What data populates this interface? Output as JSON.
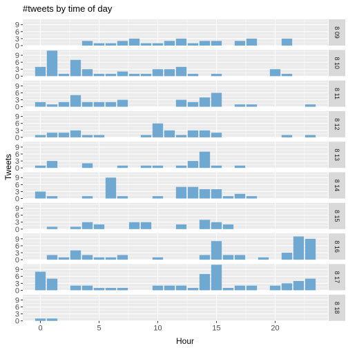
{
  "chart_data": {
    "type": "bar",
    "title": "#tweets by time of day",
    "xlabel": "Hour",
    "ylabel": "Tweets",
    "x_ticks": [
      0,
      5,
      10,
      15,
      20
    ],
    "y_ticks": [
      0,
      3,
      6,
      9
    ],
    "xlim": [
      -1.5,
      24.5
    ],
    "ylim": [
      0,
      11.3
    ],
    "grid": true,
    "bar_color": "#6fa8d0",
    "panel_background": "#ebebeb",
    "strip_background": "#d9d9d9",
    "hours": [
      0,
      1,
      2,
      3,
      4,
      5,
      6,
      7,
      8,
      9,
      10,
      11,
      12,
      13,
      14,
      15,
      16,
      17,
      18,
      19,
      20,
      21,
      22,
      23
    ],
    "facets": [
      {
        "label": "8 09",
        "values": [
          0,
          0,
          0,
          0,
          2,
          1,
          1,
          2,
          3,
          1,
          1,
          2,
          3,
          1,
          2,
          2,
          0,
          2,
          3,
          0,
          0,
          3,
          0,
          0
        ]
      },
      {
        "label": "8 10",
        "values": [
          4,
          11,
          1,
          7,
          3,
          1,
          1,
          2,
          1,
          1,
          3,
          3,
          4,
          1,
          0,
          1,
          0,
          0,
          0,
          0,
          3,
          1,
          0,
          0
        ]
      },
      {
        "label": "8 11",
        "values": [
          2,
          1,
          2,
          5,
          2,
          2,
          2,
          3,
          0,
          0,
          0,
          0,
          3,
          2,
          4,
          6,
          0,
          1,
          1,
          0,
          0,
          0,
          0,
          1
        ]
      },
      {
        "label": "8 12",
        "values": [
          1,
          2,
          2,
          3,
          1,
          1,
          0,
          0,
          0,
          1,
          6,
          3,
          1,
          3,
          3,
          2,
          0,
          0,
          0,
          0,
          0,
          1,
          0,
          1
        ]
      },
      {
        "label": "8 13",
        "values": [
          1,
          3,
          0,
          0,
          2,
          0,
          0,
          1,
          0,
          1,
          1,
          0,
          1,
          3,
          7,
          1,
          0,
          1,
          0,
          0,
          0,
          0,
          0,
          0
        ]
      },
      {
        "label": "8 14",
        "values": [
          3,
          1,
          0,
          0,
          1,
          0,
          9,
          1,
          0,
          0,
          1,
          0,
          5,
          5,
          4,
          4,
          1,
          2,
          1,
          0,
          0,
          0,
          0,
          0
        ]
      },
      {
        "label": "8 15",
        "values": [
          0,
          1,
          0,
          1,
          3,
          2,
          0,
          0,
          3,
          3,
          0,
          0,
          2,
          0,
          4,
          3,
          2,
          0,
          0,
          0,
          0,
          0,
          0,
          0
        ]
      },
      {
        "label": "8 16",
        "values": [
          0,
          2,
          1,
          4,
          2,
          1,
          1,
          2,
          0,
          0,
          1,
          0,
          0,
          0,
          2,
          8,
          2,
          2,
          0,
          1,
          0,
          3,
          10,
          9
        ]
      },
      {
        "label": "8 17",
        "values": [
          8,
          5,
          0,
          2,
          2,
          1,
          1,
          1,
          0,
          0,
          2,
          2,
          2,
          1,
          7,
          11,
          1,
          2,
          2,
          0,
          2,
          3,
          4,
          5
        ]
      },
      {
        "label": "8 18",
        "values": [
          1,
          1,
          0,
          0,
          0,
          0,
          0,
          0,
          0,
          0,
          0,
          0,
          0,
          0,
          0,
          0,
          0,
          0,
          0,
          0,
          0,
          0,
          0,
          0
        ]
      }
    ]
  }
}
